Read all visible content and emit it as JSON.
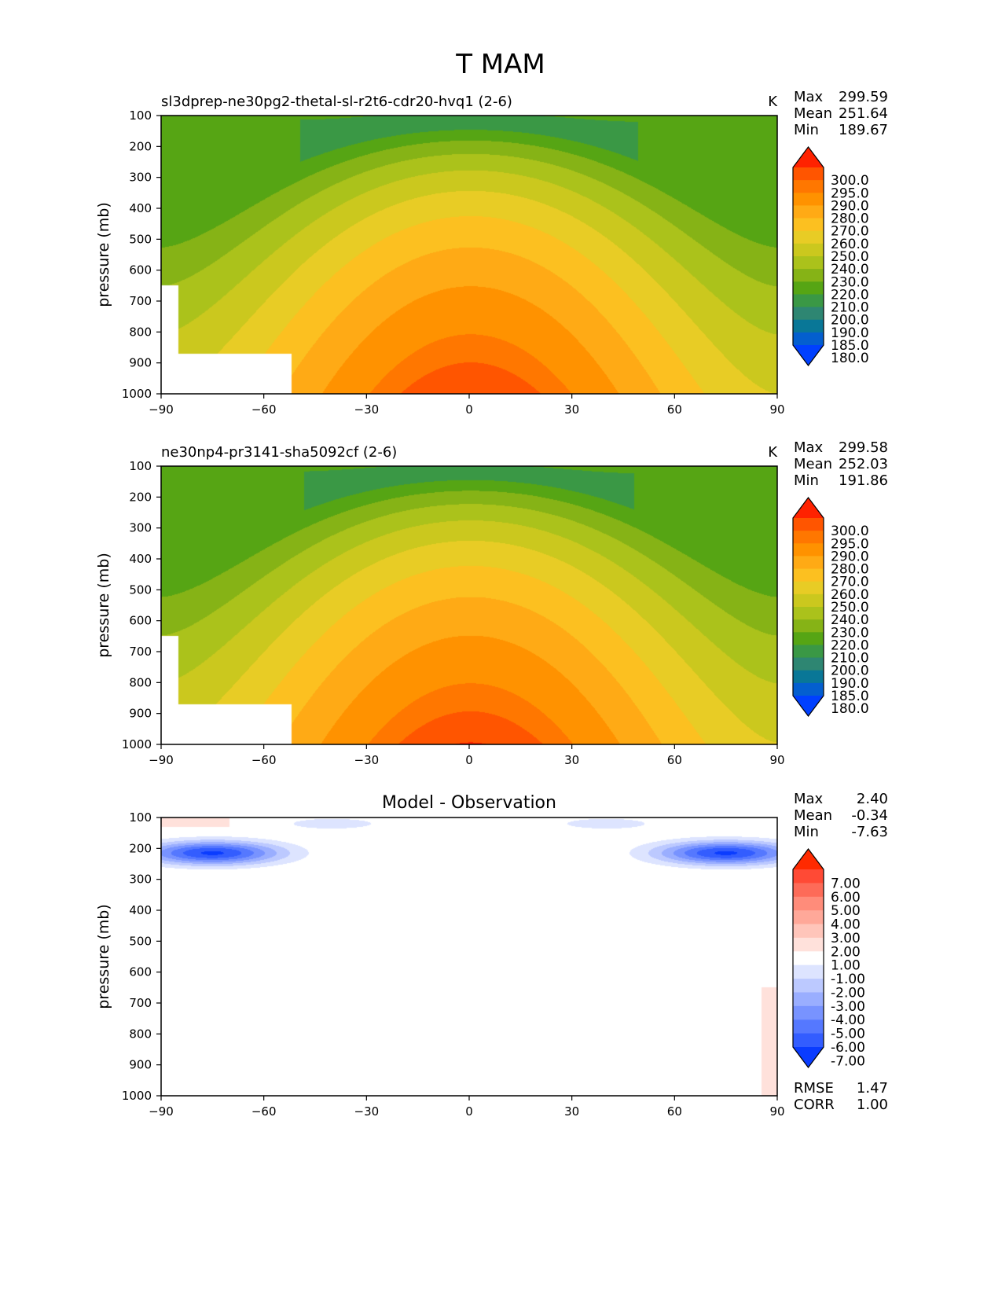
{
  "figure_title": "T MAM",
  "chart_data": [
    {
      "type": "heatmap",
      "title": "sl3dprep-ne30pg2-thetal-sl-r2t6-cdr20-hvq1 (2-6)",
      "units": "K",
      "xlabel": "",
      "ylabel": "pressure (mb)",
      "xlim": [
        -90,
        90
      ],
      "ylim": [
        1000,
        100
      ],
      "xticks": [
        "−90",
        "−60",
        "−30",
        "0",
        "30",
        "60",
        "90"
      ],
      "yticks": [
        "100",
        "200",
        "300",
        "400",
        "500",
        "600",
        "700",
        "800",
        "900",
        "1000"
      ],
      "stats": [
        {
          "label": "Max",
          "value": "299.59"
        },
        {
          "label": "Mean",
          "value": "251.64"
        },
        {
          "label": "Min",
          "value": "189.67"
        }
      ],
      "colorbar_labels": [
        "300.0",
        "295.0",
        "290.0",
        "280.0",
        "270.0",
        "260.0",
        "250.0",
        "240.0",
        "230.0",
        "220.0",
        "210.0",
        "200.0",
        "190.0",
        "185.0",
        "180.0"
      ],
      "colorbar_colors": [
        "#ff2200",
        "#ff5500",
        "#ff7700",
        "#ff9200",
        "#ffaa15",
        "#fcc020",
        "#e8cc25",
        "#cbc81e",
        "#abc21b",
        "#86b316",
        "#56a514",
        "#3a9845",
        "#2e8672",
        "#097797",
        "#045fcf",
        "#0040ff"
      ],
      "field": {
        "peak_temperature": 299.59,
        "surface_min_poles": 250,
        "tropopause_min": 189.67,
        "fill_value_region": "Antarctic surface (lat < -52, p > 870)"
      }
    },
    {
      "type": "heatmap",
      "title": "ne30np4-pr3141-sha5092cf (2-6)",
      "units": "K",
      "xlabel": "",
      "ylabel": "pressure (mb)",
      "xlim": [
        -90,
        90
      ],
      "ylim": [
        1000,
        100
      ],
      "xticks": [
        "−90",
        "−60",
        "−30",
        "0",
        "30",
        "60",
        "90"
      ],
      "yticks": [
        "100",
        "200",
        "300",
        "400",
        "500",
        "600",
        "700",
        "800",
        "900",
        "1000"
      ],
      "stats": [
        {
          "label": "Max",
          "value": "299.58"
        },
        {
          "label": "Mean",
          "value": "252.03"
        },
        {
          "label": "Min",
          "value": "191.86"
        }
      ],
      "colorbar_labels": [
        "300.0",
        "295.0",
        "290.0",
        "280.0",
        "270.0",
        "260.0",
        "250.0",
        "240.0",
        "230.0",
        "220.0",
        "210.0",
        "200.0",
        "190.0",
        "185.0",
        "180.0"
      ],
      "colorbar_colors": [
        "#ff2200",
        "#ff5500",
        "#ff7700",
        "#ff9200",
        "#ffaa15",
        "#fcc020",
        "#e8cc25",
        "#cbc81e",
        "#abc21b",
        "#86b316",
        "#56a514",
        "#3a9845",
        "#2e8672",
        "#097797",
        "#045fcf",
        "#0040ff"
      ],
      "field": {
        "peak_temperature": 299.58,
        "surface_min_poles": 250,
        "tropopause_min": 191.86,
        "fill_value_region": "Antarctic surface (lat < -52, p > 870)"
      }
    },
    {
      "type": "heatmap",
      "title": "Model - Observation",
      "units": "",
      "xlabel": "",
      "ylabel": "pressure (mb)",
      "xlim": [
        -90,
        90
      ],
      "ylim": [
        1000,
        100
      ],
      "xticks": [
        "−90",
        "−60",
        "−30",
        "0",
        "30",
        "60",
        "90"
      ],
      "yticks": [
        "100",
        "200",
        "300",
        "400",
        "500",
        "600",
        "700",
        "800",
        "900",
        "1000"
      ],
      "stats": [
        {
          "label": "Max",
          "value": "2.40"
        },
        {
          "label": "Mean",
          "value": "-0.34"
        },
        {
          "label": "Min",
          "value": "-7.63"
        }
      ],
      "colorbar_labels": [
        "7.00",
        "6.00",
        "5.00",
        "4.00",
        "3.00",
        "2.00",
        "1.00",
        "-1.00",
        "-2.00",
        "-3.00",
        "-4.00",
        "-5.00",
        "-6.00",
        "-7.00"
      ],
      "colorbar_colors": [
        "#ff2a00",
        "#ff4a35",
        "#fd6b58",
        "#ff8c7a",
        "#ffa899",
        "#ffc5ba",
        "#ffe1db",
        "#ffffff",
        "#dde4ff",
        "#bcc9ff",
        "#9aaeff",
        "#7893ff",
        "#5578ff",
        "#335dff",
        "#0a3cff"
      ],
      "diff_stats": [
        {
          "label": "RMSE",
          "value": "1.47"
        },
        {
          "label": "CORR",
          "value": "1.00"
        }
      ],
      "field": {
        "min_bias": -7.63,
        "max_bias": 2.4,
        "cold_bias_level_mb": 220
      }
    }
  ]
}
